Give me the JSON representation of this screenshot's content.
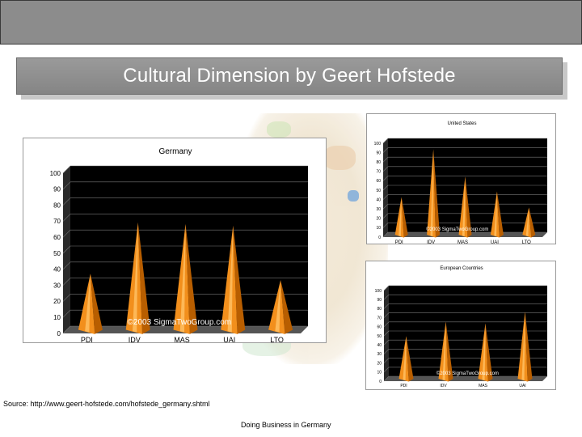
{
  "slide": {
    "title": "Cultural Dimension by Geert Hofstede",
    "source": "Source: http://www.geert-hofstede.com/hofstede_germany.shtml",
    "footer": "Doing Business in Germany"
  },
  "colors": {
    "bar_fill": "#f28f1c",
    "bar_light": "#ffc266",
    "bar_dark": "#b85e00",
    "plot_bg": "#000000",
    "grid": "#777777"
  },
  "chart_data": [
    {
      "id": "germany",
      "type": "bar",
      "title": "Germany",
      "categories": [
        "PDI",
        "IDV",
        "MAS",
        "UAI",
        "LTO"
      ],
      "values": [
        35,
        67,
        66,
        65,
        31
      ],
      "ylim": [
        0,
        100
      ],
      "yticks": [
        "0",
        "10",
        "20",
        "30",
        "40",
        "50",
        "60",
        "70",
        "80",
        "90",
        "100"
      ],
      "watermark": "©2003 SigmaTwoGroup.com"
    },
    {
      "id": "united-states",
      "type": "bar",
      "title": "United States",
      "categories": [
        "PDI",
        "IDV",
        "MAS",
        "UAI",
        "LTO"
      ],
      "values": [
        40,
        91,
        62,
        46,
        29
      ],
      "ylim": [
        0,
        100
      ],
      "yticks": [
        "0",
        "10",
        "20",
        "30",
        "40",
        "50",
        "60",
        "70",
        "80",
        "90",
        "100"
      ],
      "watermark": "©2003 SigmaTwoGroup.com"
    },
    {
      "id": "european-countries",
      "type": "bar",
      "title": "European Countries",
      "categories": [
        "PDI",
        "IDV",
        "MAS",
        "UAI"
      ],
      "values": [
        47,
        63,
        61,
        74
      ],
      "ylim": [
        0,
        100
      ],
      "yticks": [
        "0",
        "10",
        "20",
        "30",
        "40",
        "50",
        "60",
        "70",
        "80",
        "90",
        "100"
      ],
      "watermark": "©2003 SigmaTwoGroup.com"
    }
  ]
}
